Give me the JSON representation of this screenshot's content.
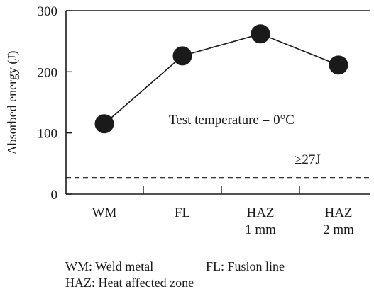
{
  "chart_data": {
    "type": "line",
    "categories": [
      "WM",
      "FL",
      "HAZ\n1 mm",
      "HAZ\n2 mm"
    ],
    "category_lines": [
      [
        "WM"
      ],
      [
        "FL"
      ],
      [
        "HAZ",
        "1 mm"
      ],
      [
        "HAZ",
        "2 mm"
      ]
    ],
    "values": [
      115,
      226,
      262,
      211
    ],
    "ylabel": "Absorbed energy (J)",
    "ylim": [
      0,
      300
    ],
    "yticks": [
      0,
      100,
      200,
      300
    ],
    "grid": false,
    "marker": "filled-circle",
    "line_color": "#1a1a1a",
    "marker_color": "#1a1a1a",
    "annotations": {
      "condition": "Test temperature = 0°C",
      "threshold_label": "≥27J"
    },
    "threshold": {
      "value": 27,
      "style": "dashed"
    }
  },
  "legend_notes": {
    "line1_a": "WM: Weld metal",
    "line1_b": "FL: Fusion line",
    "line2": "HAZ: Heat affected zone"
  }
}
